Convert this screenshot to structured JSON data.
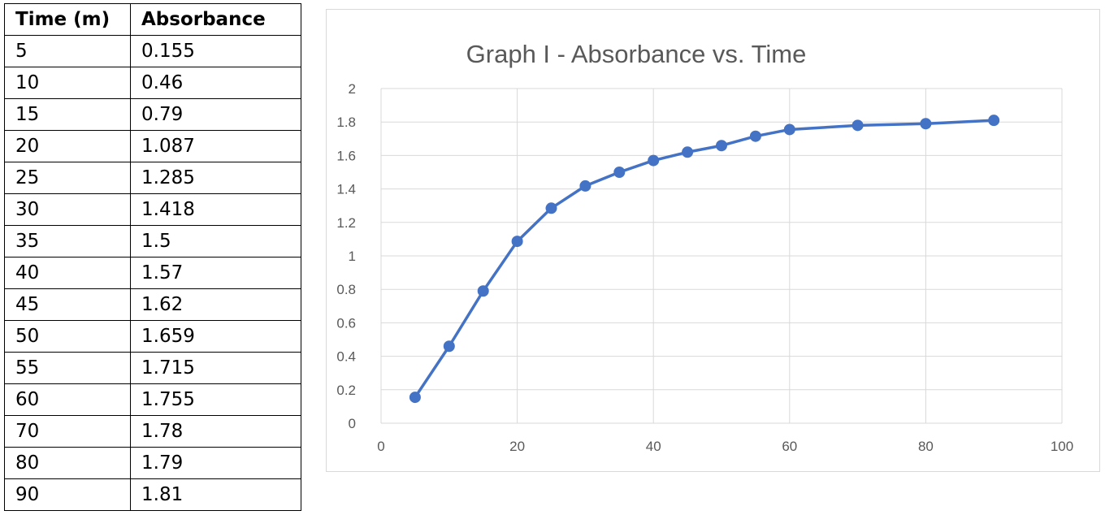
{
  "table": {
    "headers": [
      "Time (m)",
      "Absorbance"
    ],
    "rows": [
      [
        "5",
        "0.155"
      ],
      [
        "10",
        "0.46"
      ],
      [
        "15",
        "0.79"
      ],
      [
        "20",
        "1.087"
      ],
      [
        "25",
        "1.285"
      ],
      [
        "30",
        "1.418"
      ],
      [
        "35",
        "1.5"
      ],
      [
        "40",
        "1.57"
      ],
      [
        "45",
        "1.62"
      ],
      [
        "50",
        "1.659"
      ],
      [
        "55",
        "1.715"
      ],
      [
        "60",
        "1.755"
      ],
      [
        "70",
        "1.78"
      ],
      [
        "80",
        "1.79"
      ],
      [
        "90",
        "1.81"
      ]
    ]
  },
  "chart_data": {
    "type": "scatter",
    "title": "Graph I - Absorbance vs. Time",
    "xlabel": "",
    "ylabel": "",
    "xlim": [
      0,
      100
    ],
    "ylim": [
      0,
      2
    ],
    "xticks": [
      0,
      20,
      40,
      60,
      80,
      100
    ],
    "yticks": [
      0,
      0.2,
      0.4,
      0.6,
      0.8,
      1,
      1.2,
      1.4,
      1.6,
      1.8,
      2
    ],
    "grid": true,
    "legend": "none",
    "series": [
      {
        "x": [
          5,
          10,
          15,
          20,
          25,
          30,
          35,
          40,
          45,
          50,
          55,
          60,
          70,
          80,
          90
        ],
        "y": [
          0.155,
          0.46,
          0.79,
          1.087,
          1.285,
          1.418,
          1.5,
          1.57,
          1.62,
          1.659,
          1.715,
          1.755,
          1.78,
          1.79,
          1.81
        ],
        "color": "#4472c4",
        "line": true,
        "markers": true
      }
    ]
  }
}
